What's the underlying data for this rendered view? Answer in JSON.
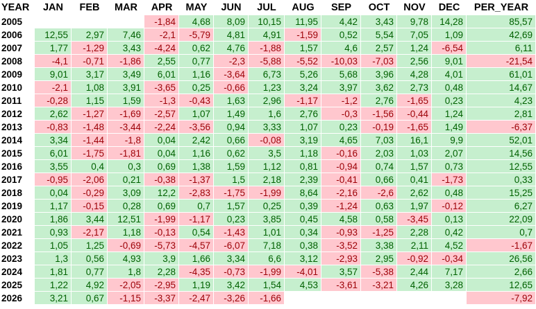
{
  "table": {
    "header": [
      "YEAR",
      "JAN",
      "FEB",
      "MAR",
      "APR",
      "MAY",
      "JUN",
      "JUL",
      "AUG",
      "SEP",
      "OCT",
      "NOV",
      "DEC",
      "PER_YEAR"
    ],
    "rows": [
      [
        "2005",
        null,
        null,
        null,
        "-1,84",
        "4,68",
        "8,09",
        "10,15",
        "11,95",
        "4,42",
        "3,43",
        "9,78",
        "14,28",
        "85,57"
      ],
      [
        "2006",
        "12,55",
        "2,97",
        "7,46",
        "-2,1",
        "-5,79",
        "4,81",
        "4,91",
        "-1,59",
        "0,52",
        "5,54",
        "7,05",
        "1,09",
        "42,69"
      ],
      [
        "2007",
        "1,77",
        "-1,29",
        "3,43",
        "-4,24",
        "0,62",
        "4,76",
        "-1,88",
        "1,57",
        "4,6",
        "2,57",
        "1,24",
        "-6,54",
        "6,11"
      ],
      [
        "2008",
        "-4,1",
        "-0,71",
        "-1,86",
        "2,55",
        "0,77",
        "-2,3",
        "-5,88",
        "-5,52",
        "-10,03",
        "-7,03",
        "2,56",
        "9,01",
        "-21,54"
      ],
      [
        "2009",
        "9,01",
        "3,17",
        "3,49",
        "6,01",
        "1,16",
        "-3,64",
        "6,73",
        "5,26",
        "5,68",
        "3,96",
        "4,28",
        "4,01",
        "61,01"
      ],
      [
        "2010",
        "-2,1",
        "1,08",
        "3,91",
        "-3,65",
        "0,25",
        "-0,66",
        "1,23",
        "3,24",
        "3,97",
        "3,62",
        "2,73",
        "0,48",
        "14,67"
      ],
      [
        "2011",
        "-0,28",
        "1,15",
        "1,59",
        "-1,3",
        "-0,43",
        "1,63",
        "2,96",
        "-1,17",
        "-1,2",
        "2,76",
        "-1,65",
        "0,23",
        "4,23"
      ],
      [
        "2012",
        "2,62",
        "-1,27",
        "-1,69",
        "-2,57",
        "1,07",
        "1,49",
        "1,6",
        "2,76",
        "-0,3",
        "-1,56",
        "-0,44",
        "1,24",
        "2,81"
      ],
      [
        "2013",
        "-0,83",
        "-1,48",
        "-3,44",
        "-2,24",
        "-3,56",
        "0,94",
        "3,33",
        "1,07",
        "0,23",
        "-0,19",
        "-1,65",
        "1,49",
        "-6,37"
      ],
      [
        "2014",
        "3,34",
        "-1,44",
        "-1,8",
        "0,04",
        "2,42",
        "0,66",
        "-0,08",
        "3,19",
        "4,65",
        "7,03",
        "16,1",
        "9,9",
        "52,01"
      ],
      [
        "2015",
        "6,01",
        "-1,75",
        "-1,81",
        "0,04",
        "1,16",
        "0,62",
        "3,5",
        "1,18",
        "-0,16",
        "2,03",
        "1,03",
        "2,07",
        "14,56"
      ],
      [
        "2016",
        "3,55",
        "0,4",
        "0,3",
        "0,69",
        "1,38",
        "1,59",
        "1,12",
        "0,81",
        "-0,94",
        "0,74",
        "1,57",
        "0,73",
        "12,55"
      ],
      [
        "2017",
        "-0,95",
        "-2,06",
        "0,21",
        "-0,38",
        "-1,37",
        "1,5",
        "2,18",
        "2,39",
        "-0,41",
        "0,66",
        "0,41",
        "-1,73",
        "0,33"
      ],
      [
        "2018",
        "0,04",
        "-0,29",
        "3,09",
        "12,2",
        "-2,83",
        "-1,75",
        "-1,99",
        "8,64",
        "-2,16",
        "-2,6",
        "2,62",
        "0,48",
        "15,25"
      ],
      [
        "2019",
        "1,17",
        "-0,15",
        "0,28",
        "0,69",
        "0,7",
        "1,57",
        "0,25",
        "0,39",
        "-1,24",
        "0,63",
        "1,97",
        "-0,12",
        "6,27"
      ],
      [
        "2020",
        "1,86",
        "3,44",
        "12,51",
        "-1,99",
        "-1,17",
        "0,23",
        "3,85",
        "0,45",
        "4,58",
        "0,58",
        "-3,45",
        "0,13",
        "22,09"
      ],
      [
        "2021",
        "0,93",
        "-2,17",
        "1,18",
        "-0,13",
        "0,54",
        "-1,43",
        "1,01",
        "0,34",
        "-0,93",
        "-1,25",
        "2,28",
        "0,42",
        "0,7"
      ],
      [
        "2022",
        "1,05",
        "1,25",
        "-0,69",
        "-5,73",
        "-4,57",
        "-6,07",
        "7,18",
        "0,38",
        "-3,52",
        "3,38",
        "2,11",
        "4,52",
        "-1,67"
      ],
      [
        "2023",
        "1,3",
        "0,56",
        "4,93",
        "3,9",
        "1,66",
        "3,34",
        "6,6",
        "3,12",
        "-2,93",
        "2,95",
        "-0,92",
        "-0,34",
        "26,56"
      ],
      [
        "2024",
        "1,81",
        "0,77",
        "1,8",
        "2,28",
        "-4,35",
        "-0,73",
        "-1,99",
        "-4,01",
        "3,57",
        "-5,38",
        "2,44",
        "7,17",
        "2,66"
      ],
      [
        "2025",
        "1,22",
        "4,92",
        "-2,05",
        "-2,95",
        "1,19",
        "3,42",
        "1,54",
        "4,53",
        "-3,61",
        "-3,21",
        "4,26",
        "3,28",
        "12,65"
      ],
      [
        "2026",
        "3,21",
        "0,67",
        "-1,15",
        "-3,37",
        "-2,47",
        "-3,26",
        "-1,66",
        null,
        null,
        null,
        null,
        null,
        "-7,92"
      ]
    ]
  }
}
